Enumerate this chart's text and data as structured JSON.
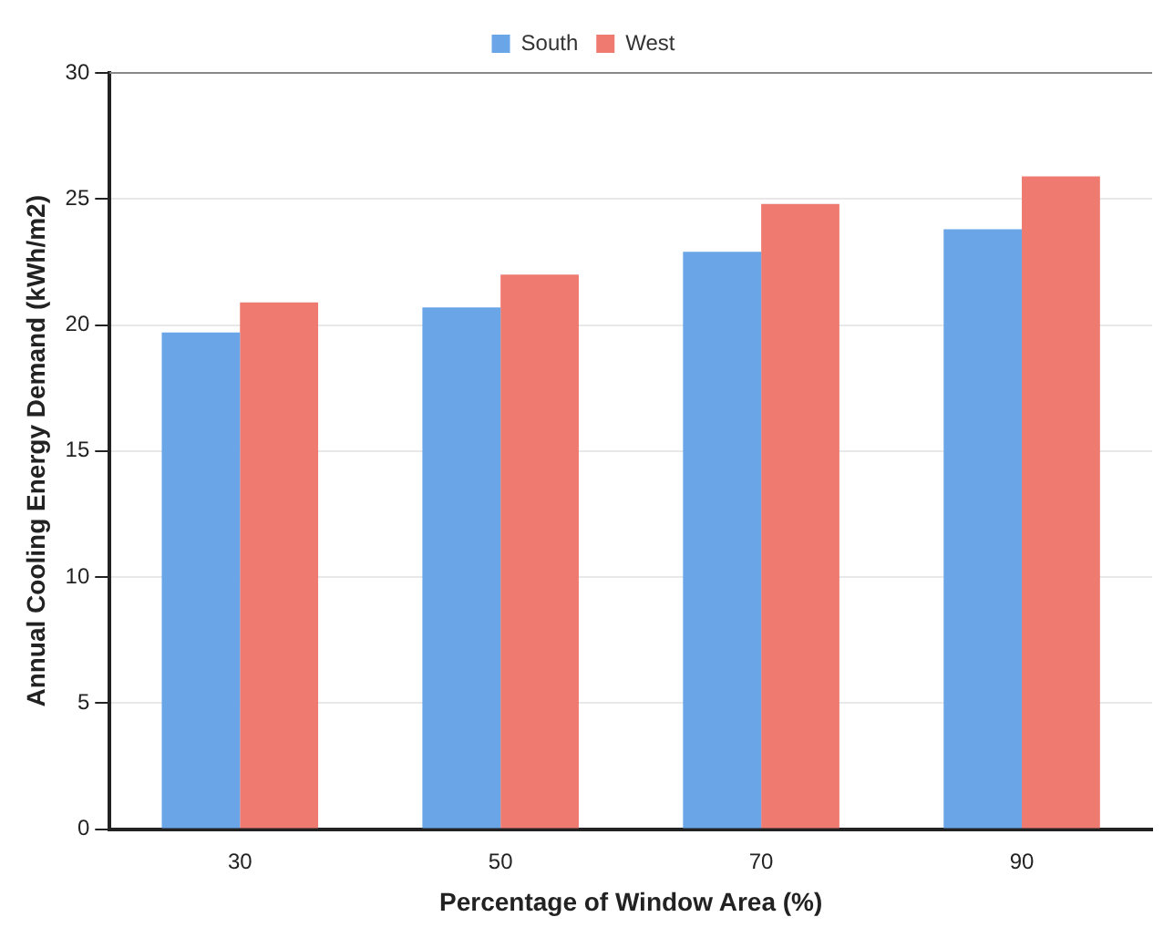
{
  "chart_data": {
    "type": "bar",
    "xlabel": "Percentage of Window Area (%)",
    "ylabel": "Annual Cooling Energy Demand (kWh/m2)",
    "categories": [
      "30",
      "50",
      "70",
      "90"
    ],
    "series": [
      {
        "name": "South",
        "color": "#6aa5e8",
        "values": [
          19.7,
          20.7,
          22.9,
          23.8
        ]
      },
      {
        "name": "West",
        "color": "#ee7a70",
        "values": [
          20.9,
          22.0,
          24.8,
          25.9
        ]
      }
    ],
    "ylim": [
      0,
      30
    ],
    "yticks": [
      0,
      5,
      10,
      15,
      20,
      25,
      30
    ],
    "grid": "y",
    "legend": "top"
  }
}
